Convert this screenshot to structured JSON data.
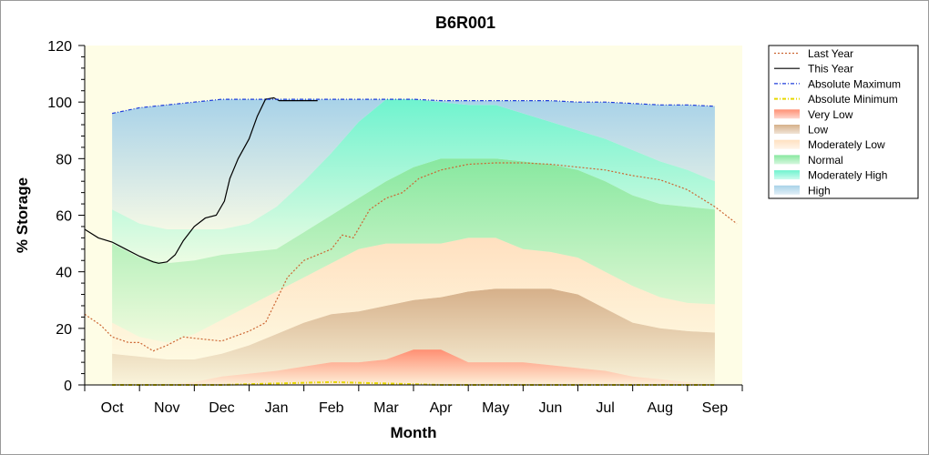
{
  "chart_data": {
    "type": "area",
    "title": "B6R001",
    "xlabel": "Month",
    "ylabel": "% Storage",
    "ylim": [
      0,
      120
    ],
    "yticks": [
      0,
      20,
      40,
      60,
      80,
      100,
      120
    ],
    "xlim": [
      -0.5,
      11.5
    ],
    "x_categories": [
      "Oct",
      "Nov",
      "Dec",
      "Jan",
      "Feb",
      "Mar",
      "Apr",
      "May",
      "Jun",
      "Jul",
      "Aug",
      "Sep"
    ],
    "grid": false,
    "legend_position": "right",
    "band_x": [
      0,
      0.5,
      1,
      1.5,
      2,
      2.5,
      3,
      3.5,
      4,
      4.5,
      5,
      5.5,
      6,
      6.5,
      7,
      7.5,
      8,
      8.5,
      9,
      9.5,
      10,
      10.5,
      11
    ],
    "bands": [
      {
        "name": "Very Low",
        "color": "#ff8f73",
        "top": [
          0,
          0,
          0,
          1,
          3,
          4,
          5,
          6.5,
          8,
          8,
          9,
          12.5,
          12.5,
          8,
          8,
          8,
          7,
          6,
          5,
          3,
          2,
          1,
          0
        ]
      },
      {
        "name": "Low",
        "color": "#d6b08a",
        "top": [
          11,
          10,
          9,
          9,
          11,
          14,
          18,
          22,
          25,
          26,
          28,
          30,
          31,
          33,
          34,
          34,
          34,
          32,
          27,
          22,
          20,
          19,
          18.5
        ]
      },
      {
        "name": "Moderately Low",
        "color": "#ffe0c0",
        "top": [
          22,
          17,
          15,
          18,
          23,
          28,
          33,
          38,
          43,
          48,
          50,
          50,
          50,
          52,
          52,
          48,
          47,
          45,
          40,
          35,
          31,
          29,
          28.5
        ]
      },
      {
        "name": "Normal",
        "color": "#88e8a0",
        "top": [
          50,
          45,
          43,
          44,
          46,
          47,
          48,
          54,
          60,
          66,
          72,
          77,
          80,
          80,
          80,
          79,
          78,
          76,
          72,
          67,
          64,
          63,
          62
        ]
      },
      {
        "name": "Moderately High",
        "color": "#6ff3cf",
        "top": [
          62,
          57,
          55,
          55,
          55,
          57,
          63,
          72,
          82,
          93,
          101,
          101,
          100,
          99,
          99,
          96,
          93,
          90,
          87,
          83,
          79,
          76,
          72
        ]
      },
      {
        "name": "High",
        "color": "#a8d2e8",
        "top": [
          96,
          98,
          99,
          100,
          101,
          101,
          101,
          101,
          101,
          101,
          101,
          101,
          100.5,
          100.5,
          100.5,
          100.5,
          100.5,
          100,
          100,
          99.5,
          99,
          99,
          98.5
        ]
      }
    ],
    "series": [
      {
        "name": "Last Year",
        "style": "dotted-line",
        "color": "#cc6633",
        "x": [
          -0.5,
          -0.2,
          0,
          0.3,
          0.5,
          0.75,
          1,
          1.3,
          1.5,
          2,
          2.5,
          2.8,
          3.0,
          3.2,
          3.5,
          4,
          4.2,
          4.4,
          4.7,
          5,
          5.3,
          5.6,
          6,
          6.5,
          7,
          7.5,
          8,
          8.5,
          9,
          9.5,
          10,
          10.5,
          11,
          11.4
        ],
        "y": [
          25,
          21,
          17,
          15,
          15,
          12,
          14,
          17,
          16.5,
          15.5,
          19,
          22,
          30,
          38,
          44,
          48,
          53,
          52,
          62,
          66,
          68,
          73,
          76,
          78,
          78.5,
          78.5,
          78,
          77,
          76,
          74,
          72.5,
          69,
          63,
          57
        ]
      },
      {
        "name": "This Year",
        "style": "solid-line",
        "color": "#000000",
        "x": [
          -0.5,
          -0.25,
          0,
          0.25,
          0.5,
          0.75,
          0.85,
          1,
          1.15,
          1.3,
          1.5,
          1.7,
          1.9,
          2.05,
          2.15,
          2.3,
          2.5,
          2.65,
          2.8,
          2.95,
          3.05,
          3.2,
          3.4,
          3.6,
          3.75
        ],
        "y": [
          55,
          52,
          50.5,
          48,
          45.5,
          43.5,
          43,
          43.5,
          46,
          51,
          56,
          59,
          60,
          65,
          73,
          80,
          87,
          95,
          101,
          101.5,
          100.5,
          100.5,
          100.5,
          100.5,
          100.5
        ]
      },
      {
        "name": "Absolute Maximum",
        "style": "dashdot-line",
        "color": "#1f3ddb",
        "x": [
          0,
          0.5,
          1,
          1.5,
          2,
          2.5,
          3,
          3.5,
          4,
          4.5,
          5,
          5.5,
          6,
          6.5,
          7,
          7.5,
          8,
          8.5,
          9,
          9.5,
          10,
          10.5,
          11
        ],
        "y": [
          96,
          98,
          99,
          100,
          101,
          101,
          101,
          101,
          101,
          101,
          101,
          101,
          100.5,
          100.5,
          100.5,
          100.5,
          100.5,
          100,
          100,
          99.5,
          99,
          99,
          98.5
        ]
      },
      {
        "name": "Absolute Minimum",
        "style": "dashdot-line",
        "color": "#e6d800",
        "x": [
          0,
          1,
          2,
          3,
          4,
          5,
          6,
          7,
          8,
          9,
          10,
          11
        ],
        "y": [
          0,
          0,
          0,
          0.5,
          1,
          0.5,
          0,
          0,
          0,
          0,
          0,
          0
        ]
      }
    ]
  },
  "legend": [
    {
      "label": "Last Year",
      "kind": "line",
      "color": "#cc6633",
      "dash": "2,2"
    },
    {
      "label": "This Year",
      "kind": "line",
      "color": "#000000",
      "dash": ""
    },
    {
      "label": "Absolute Maximum",
      "kind": "line",
      "color": "#1f3ddb",
      "dash": "4,2,1,2"
    },
    {
      "label": "Absolute Minimum",
      "kind": "line",
      "color": "#e6d800",
      "dash": "4,2,1,2"
    },
    {
      "label": "Very Low",
      "kind": "band",
      "color": "#ff8f73"
    },
    {
      "label": "Low",
      "kind": "band",
      "color": "#d6b08a"
    },
    {
      "label": "Moderately Low",
      "kind": "band",
      "color": "#ffe0c0"
    },
    {
      "label": "Normal",
      "kind": "band",
      "color": "#88e8a0"
    },
    {
      "label": "Moderately High",
      "kind": "band",
      "color": "#6ff3cf"
    },
    {
      "label": "High",
      "kind": "band",
      "color": "#a8d2e8"
    }
  ]
}
